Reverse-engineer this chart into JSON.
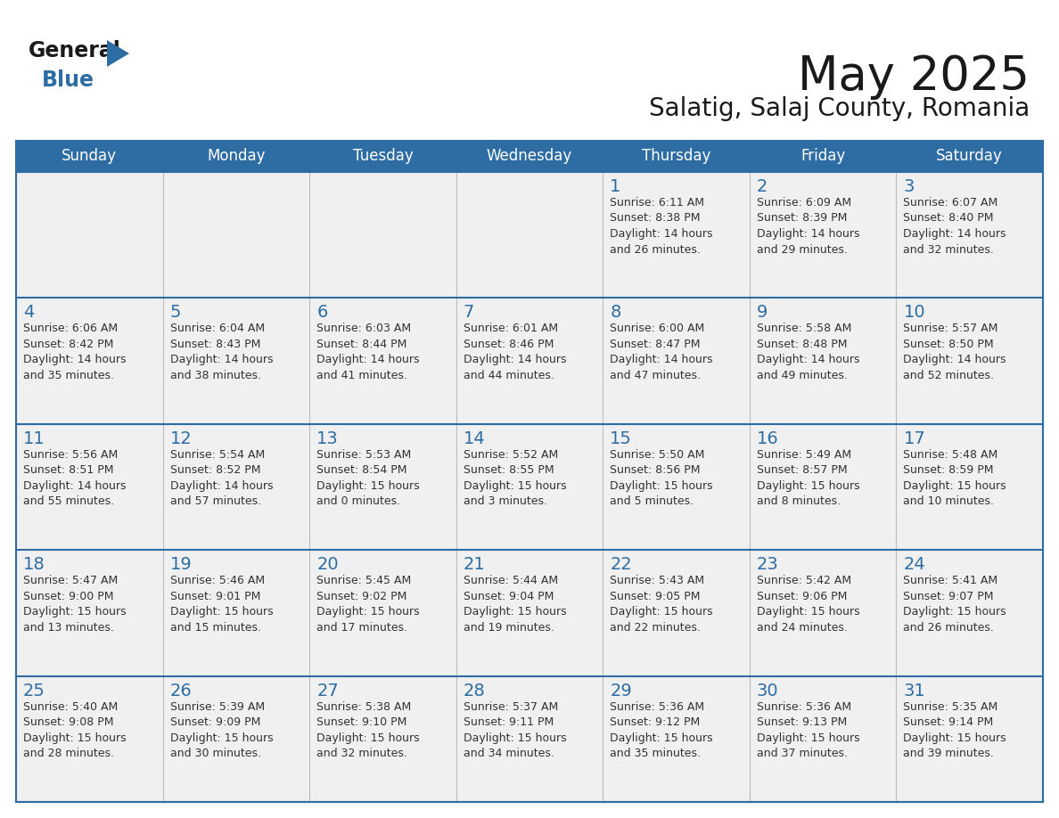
{
  "title": "May 2025",
  "subtitle": "Salatig, Salaj County, Romania",
  "header_bg": "#2E6DA4",
  "header_text_color": "#FFFFFF",
  "cell_bg": "#F0F0F0",
  "day_number_color": "#2E6DA4",
  "info_text_color": "#333333",
  "border_color": "#2E6DA4",
  "separator_color": "#AAAAAA",
  "days_of_week": [
    "Sunday",
    "Monday",
    "Tuesday",
    "Wednesday",
    "Thursday",
    "Friday",
    "Saturday"
  ],
  "weeks": [
    [
      {
        "day": "",
        "info": ""
      },
      {
        "day": "",
        "info": ""
      },
      {
        "day": "",
        "info": ""
      },
      {
        "day": "",
        "info": ""
      },
      {
        "day": "1",
        "info": "Sunrise: 6:11 AM\nSunset: 8:38 PM\nDaylight: 14 hours\nand 26 minutes."
      },
      {
        "day": "2",
        "info": "Sunrise: 6:09 AM\nSunset: 8:39 PM\nDaylight: 14 hours\nand 29 minutes."
      },
      {
        "day": "3",
        "info": "Sunrise: 6:07 AM\nSunset: 8:40 PM\nDaylight: 14 hours\nand 32 minutes."
      }
    ],
    [
      {
        "day": "4",
        "info": "Sunrise: 6:06 AM\nSunset: 8:42 PM\nDaylight: 14 hours\nand 35 minutes."
      },
      {
        "day": "5",
        "info": "Sunrise: 6:04 AM\nSunset: 8:43 PM\nDaylight: 14 hours\nand 38 minutes."
      },
      {
        "day": "6",
        "info": "Sunrise: 6:03 AM\nSunset: 8:44 PM\nDaylight: 14 hours\nand 41 minutes."
      },
      {
        "day": "7",
        "info": "Sunrise: 6:01 AM\nSunset: 8:46 PM\nDaylight: 14 hours\nand 44 minutes."
      },
      {
        "day": "8",
        "info": "Sunrise: 6:00 AM\nSunset: 8:47 PM\nDaylight: 14 hours\nand 47 minutes."
      },
      {
        "day": "9",
        "info": "Sunrise: 5:58 AM\nSunset: 8:48 PM\nDaylight: 14 hours\nand 49 minutes."
      },
      {
        "day": "10",
        "info": "Sunrise: 5:57 AM\nSunset: 8:50 PM\nDaylight: 14 hours\nand 52 minutes."
      }
    ],
    [
      {
        "day": "11",
        "info": "Sunrise: 5:56 AM\nSunset: 8:51 PM\nDaylight: 14 hours\nand 55 minutes."
      },
      {
        "day": "12",
        "info": "Sunrise: 5:54 AM\nSunset: 8:52 PM\nDaylight: 14 hours\nand 57 minutes."
      },
      {
        "day": "13",
        "info": "Sunrise: 5:53 AM\nSunset: 8:54 PM\nDaylight: 15 hours\nand 0 minutes."
      },
      {
        "day": "14",
        "info": "Sunrise: 5:52 AM\nSunset: 8:55 PM\nDaylight: 15 hours\nand 3 minutes."
      },
      {
        "day": "15",
        "info": "Sunrise: 5:50 AM\nSunset: 8:56 PM\nDaylight: 15 hours\nand 5 minutes."
      },
      {
        "day": "16",
        "info": "Sunrise: 5:49 AM\nSunset: 8:57 PM\nDaylight: 15 hours\nand 8 minutes."
      },
      {
        "day": "17",
        "info": "Sunrise: 5:48 AM\nSunset: 8:59 PM\nDaylight: 15 hours\nand 10 minutes."
      }
    ],
    [
      {
        "day": "18",
        "info": "Sunrise: 5:47 AM\nSunset: 9:00 PM\nDaylight: 15 hours\nand 13 minutes."
      },
      {
        "day": "19",
        "info": "Sunrise: 5:46 AM\nSunset: 9:01 PM\nDaylight: 15 hours\nand 15 minutes."
      },
      {
        "day": "20",
        "info": "Sunrise: 5:45 AM\nSunset: 9:02 PM\nDaylight: 15 hours\nand 17 minutes."
      },
      {
        "day": "21",
        "info": "Sunrise: 5:44 AM\nSunset: 9:04 PM\nDaylight: 15 hours\nand 19 minutes."
      },
      {
        "day": "22",
        "info": "Sunrise: 5:43 AM\nSunset: 9:05 PM\nDaylight: 15 hours\nand 22 minutes."
      },
      {
        "day": "23",
        "info": "Sunrise: 5:42 AM\nSunset: 9:06 PM\nDaylight: 15 hours\nand 24 minutes."
      },
      {
        "day": "24",
        "info": "Sunrise: 5:41 AM\nSunset: 9:07 PM\nDaylight: 15 hours\nand 26 minutes."
      }
    ],
    [
      {
        "day": "25",
        "info": "Sunrise: 5:40 AM\nSunset: 9:08 PM\nDaylight: 15 hours\nand 28 minutes."
      },
      {
        "day": "26",
        "info": "Sunrise: 5:39 AM\nSunset: 9:09 PM\nDaylight: 15 hours\nand 30 minutes."
      },
      {
        "day": "27",
        "info": "Sunrise: 5:38 AM\nSunset: 9:10 PM\nDaylight: 15 hours\nand 32 minutes."
      },
      {
        "day": "28",
        "info": "Sunrise: 5:37 AM\nSunset: 9:11 PM\nDaylight: 15 hours\nand 34 minutes."
      },
      {
        "day": "29",
        "info": "Sunrise: 5:36 AM\nSunset: 9:12 PM\nDaylight: 15 hours\nand 35 minutes."
      },
      {
        "day": "30",
        "info": "Sunrise: 5:36 AM\nSunset: 9:13 PM\nDaylight: 15 hours\nand 37 minutes."
      },
      {
        "day": "31",
        "info": "Sunrise: 5:35 AM\nSunset: 9:14 PM\nDaylight: 15 hours\nand 39 minutes."
      }
    ]
  ]
}
